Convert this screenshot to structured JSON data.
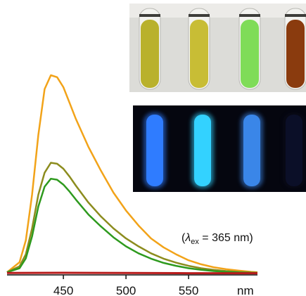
{
  "chart_data": {
    "type": "line",
    "x_unit": "nm",
    "x_ticks": [
      450,
      500,
      550
    ],
    "xlim": [
      405,
      605
    ],
    "ylim": [
      0,
      1.0
    ],
    "annotation": {
      "prefix": "(",
      "lambda": "λ",
      "subscript": "ex",
      "suffix": " = 365 nm)"
    },
    "series": [
      {
        "color": "#f2a319",
        "x": [
          405,
          415,
          420,
          425,
          430,
          435,
          440,
          445,
          450,
          455,
          460,
          470,
          480,
          490,
          500,
          510,
          520,
          530,
          540,
          550,
          560,
          570,
          580,
          590,
          600,
          605
        ],
        "y": [
          0.01,
          0.06,
          0.17,
          0.4,
          0.7,
          0.93,
          1.0,
          0.99,
          0.94,
          0.86,
          0.78,
          0.64,
          0.52,
          0.41,
          0.32,
          0.245,
          0.18,
          0.135,
          0.1,
          0.07,
          0.05,
          0.035,
          0.025,
          0.018,
          0.012,
          0.01
        ]
      },
      {
        "color": "#8c8c1e",
        "x": [
          405,
          415,
          420,
          425,
          430,
          435,
          440,
          445,
          450,
          455,
          460,
          470,
          480,
          490,
          500,
          510,
          520,
          530,
          540,
          550,
          560,
          570,
          580,
          590,
          600,
          605
        ],
        "y": [
          0.01,
          0.04,
          0.1,
          0.23,
          0.4,
          0.51,
          0.56,
          0.555,
          0.53,
          0.49,
          0.445,
          0.36,
          0.29,
          0.23,
          0.18,
          0.14,
          0.105,
          0.078,
          0.058,
          0.042,
          0.03,
          0.022,
          0.016,
          0.012,
          0.009,
          0.008
        ]
      },
      {
        "color": "#2e9a1e",
        "x": [
          405,
          415,
          420,
          425,
          430,
          435,
          440,
          445,
          450,
          455,
          460,
          470,
          480,
          490,
          500,
          510,
          520,
          530,
          540,
          550,
          560,
          570,
          580,
          590,
          600,
          605
        ],
        "y": [
          0.01,
          0.03,
          0.08,
          0.19,
          0.34,
          0.44,
          0.48,
          0.475,
          0.45,
          0.415,
          0.375,
          0.3,
          0.24,
          0.185,
          0.14,
          0.105,
          0.078,
          0.057,
          0.042,
          0.03,
          0.022,
          0.016,
          0.012,
          0.009,
          0.007,
          0.006
        ]
      },
      {
        "color": "#b81b1b",
        "x": [
          405,
          450,
          500,
          550,
          605
        ],
        "y": [
          0.006,
          0.007,
          0.006,
          0.005,
          0.005
        ]
      }
    ],
    "photos": [
      {
        "name": "daylight-vials",
        "vials": [
          "#b9b12c",
          "#c8bd35",
          "#7fdc58",
          "#8a3b0e"
        ]
      },
      {
        "name": "uv-vials",
        "vials": [
          "#2f7cff",
          "#33d2ff",
          "#3a86e8",
          "#0b0f28"
        ]
      }
    ]
  }
}
